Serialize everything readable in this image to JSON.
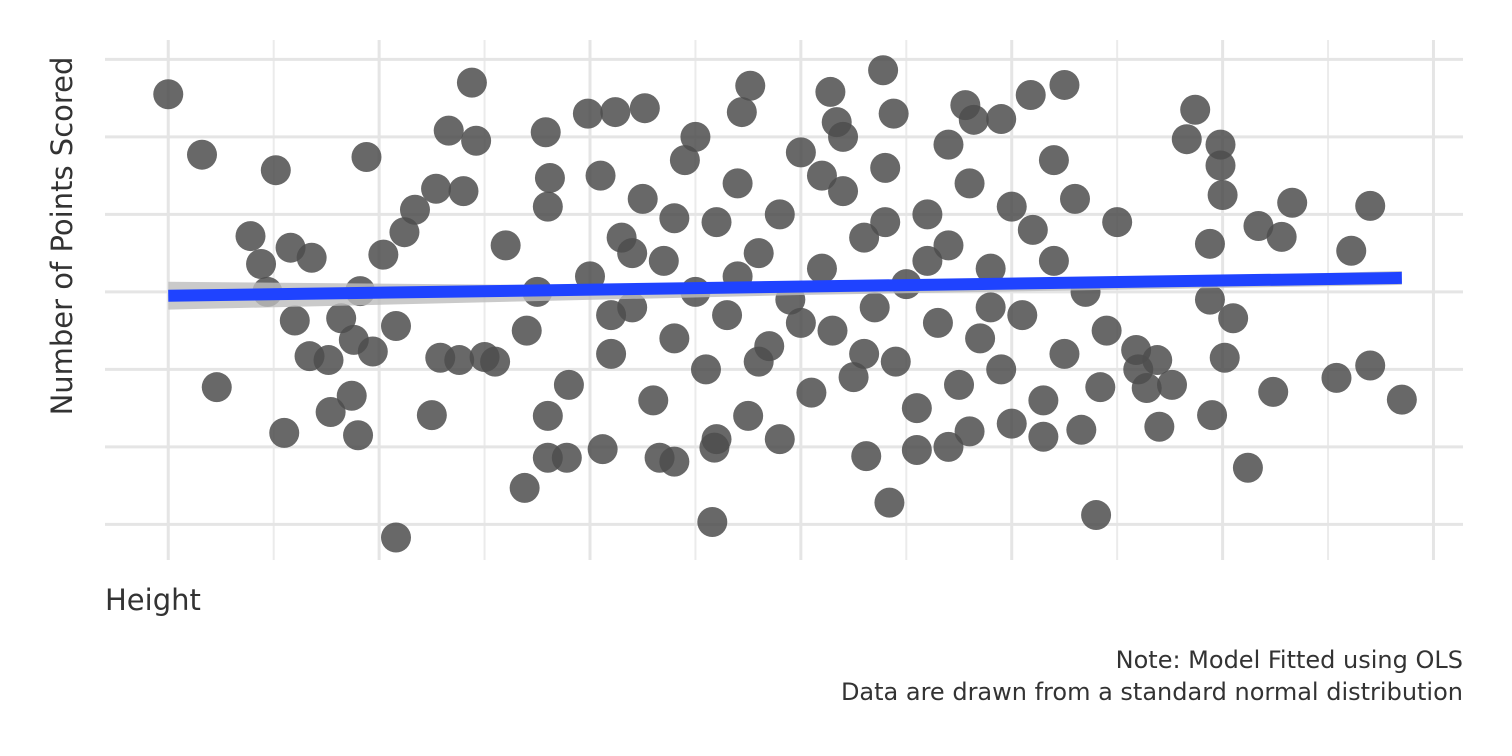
{
  "chart_data": {
    "type": "scatter",
    "ylabel": "Number of Points Scored",
    "xlabel": "Height",
    "caption": [
      "Note: Model Fitted using OLS",
      "Data are drawn from a standard normal distribution"
    ],
    "xlim": [
      -3.3,
      3.14
    ],
    "ylim": [
      -3.46,
      3.25
    ],
    "xticks": [
      -3,
      -2,
      -1,
      0,
      1,
      2,
      3
    ],
    "xminorticks": [
      -2.5,
      -1.5,
      -0.5,
      0.5,
      1.5,
      2.5
    ],
    "yticks": [
      -3,
      -2,
      -1,
      0,
      1,
      2,
      3
    ],
    "grid": true,
    "point_color": "#4d4d4d",
    "x": [
      -3.0,
      -2.84,
      -2.77,
      -2.49,
      -2.61,
      -2.56,
      -2.53,
      -2.42,
      -2.32,
      -2.4,
      -2.45,
      -2.33,
      -2.24,
      -2.23,
      -2.18,
      -2.13,
      -2.12,
      -2.1,
      -2.06,
      -2.09,
      -2.03,
      -1.92,
      -1.98,
      -1.92,
      -1.75,
      -1.56,
      -1.67,
      -1.54,
      -1.73,
      -1.83,
      -1.88,
      -1.71,
      -1.62,
      -1.5,
      -1.31,
      -1.21,
      -1.19,
      -1.01,
      -0.88,
      -0.74,
      -0.94,
      -1.2,
      -1.11,
      -0.67,
      -0.6,
      -0.42,
      -0.41,
      -0.24,
      -0.28,
      0.14,
      0.17,
      0.39,
      0.44,
      0.42,
      0.31,
      0.55,
      0.7,
      0.78,
      0.82,
      0.95,
      1.09,
      1.25,
      1.4,
      1.15,
      1.33,
      1.42,
      1.87,
      1.83,
      1.99,
      2.0,
      1.99,
      1.94,
      2.12,
      1.95,
      1.7,
      2.17,
      2.28,
      2.33,
      2.24,
      2.54,
      2.61,
      2.7,
      2.7,
      2.85,
      2.05,
      2.01,
      1.94,
      1.76,
      1.64,
      1.59,
      1.69,
      -1.4,
      -1.3,
      -1.2,
      -1.1,
      -1.0,
      -0.95,
      -0.9,
      -0.85,
      -0.8,
      -0.75,
      -0.7,
      -0.65,
      -0.6,
      -0.55,
      -0.5,
      -0.45,
      -0.4,
      -0.35,
      -0.3,
      -0.25,
      -0.2,
      -0.15,
      -0.1,
      -0.05,
      0.0,
      0.05,
      0.1,
      0.15,
      0.2,
      0.25,
      0.3,
      0.35,
      0.4,
      0.45,
      0.5,
      0.55,
      0.6,
      0.65,
      0.7,
      0.75,
      0.8,
      0.85,
      0.9,
      0.95,
      1.0,
      1.05,
      1.1,
      1.15,
      1.2,
      1.25,
      1.3,
      1.35,
      1.45,
      1.5,
      -1.45,
      -1.25,
      -0.6,
      -0.3,
      0.0,
      0.3,
      0.6,
      0.9,
      -0.8,
      -0.1,
      0.2,
      0.7,
      -0.5,
      1.0,
      -1.6,
      1.6,
      -0.2,
      0.4,
      -0.9,
      0.1,
      -0.4,
      0.8,
      1.2,
      -1.2
    ],
    "y": [
      2.55,
      1.77,
      -1.23,
      1.57,
      0.72,
      0.36,
      0.0,
      0.57,
      0.44,
      -0.37,
      -1.82,
      -0.83,
      -0.88,
      -1.55,
      -0.34,
      -1.34,
      -0.62,
      -1.85,
      1.74,
      0.01,
      -0.77,
      -3.17,
      0.48,
      -0.44,
      -1.59,
      2.7,
      2.08,
      1.95,
      1.33,
      1.06,
      0.77,
      -0.85,
      -0.88,
      -0.84,
      -2.53,
      2.06,
      1.47,
      2.3,
      2.32,
      2.37,
      -2.03,
      -2.14,
      -2.14,
      -2.14,
      -2.19,
      -2.97,
      -2.01,
      2.66,
      2.32,
      2.58,
      2.19,
      2.86,
      2.3,
      -2.72,
      -2.12,
      -2.04,
      -2.0,
      2.41,
      2.22,
      2.23,
      2.54,
      2.67,
      -2.88,
      -1.87,
      -1.78,
      -1.23,
      2.35,
      1.97,
      1.9,
      1.25,
      1.63,
      0.62,
      -2.27,
      -1.59,
      -1.74,
      0.85,
      0.71,
      1.15,
      -1.29,
      -1.11,
      0.53,
      1.11,
      -0.95,
      -1.39,
      -0.34,
      -0.85,
      -0.1,
      -1.2,
      -1.24,
      -0.75,
      -0.88,
      0.6,
      -0.5,
      1.1,
      -1.2,
      0.2,
      1.5,
      -0.8,
      0.7,
      -0.2,
      1.2,
      -1.4,
      0.4,
      -0.6,
      1.7,
      0.0,
      -1.0,
      0.9,
      -0.3,
      1.4,
      -1.6,
      0.5,
      -0.7,
      1.0,
      -0.1,
      1.8,
      -1.3,
      0.3,
      -0.5,
      1.3,
      -1.1,
      0.7,
      -0.2,
      1.6,
      -0.9,
      0.1,
      -1.5,
      1.0,
      -0.4,
      0.6,
      -1.2,
      1.4,
      -0.6,
      0.3,
      -1.0,
      1.1,
      -0.3,
      0.8,
      -1.4,
      0.4,
      -0.8,
      1.2,
      0.0,
      -0.5,
      0.9,
      -0.9,
      0.0,
      0.95,
      0.2,
      -0.4,
      -0.8,
      0.4,
      -0.2,
      0.5,
      -1.9,
      2.0,
      1.9,
      2.0,
      -1.7,
      1.3,
      -1.0,
      -0.9,
      0.9,
      -0.3,
      1.5,
      -1.9,
      -1.8,
      1.7,
      -1.6
    ],
    "fit": {
      "x": [
        -3.0,
        2.85
      ],
      "y": [
        -0.05,
        0.18
      ],
      "color": "#1f43ff"
    },
    "ci": {
      "x": [
        -3.0,
        0.0,
        2.85
      ],
      "lower": [
        -0.23,
        -0.04,
        0.09
      ],
      "upper": [
        0.13,
        0.06,
        0.27
      ],
      "color": "#bdbdbd"
    }
  }
}
